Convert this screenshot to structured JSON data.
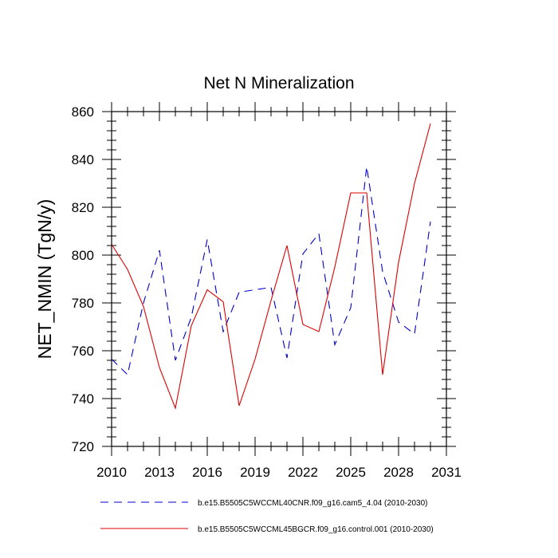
{
  "chart_data": {
    "type": "line",
    "title": "Net N Mineralization",
    "xlabel": "",
    "ylabel": "NET_NMIN  (TgN/y)",
    "xlim": [
      2010,
      2031
    ],
    "ylim": [
      720,
      860
    ],
    "x_ticks": [
      2010,
      2013,
      2016,
      2019,
      2022,
      2025,
      2028,
      2031
    ],
    "y_ticks": [
      720,
      740,
      760,
      780,
      800,
      820,
      840,
      860
    ],
    "x_minor_step": 1,
    "y_minor_step": 4,
    "x": [
      2010,
      2011,
      2012,
      2013,
      2014,
      2015,
      2016,
      2017,
      2018,
      2019,
      2020,
      2021,
      2022,
      2023,
      2024,
      2025,
      2026,
      2027,
      2028,
      2029,
      2030
    ],
    "series": [
      {
        "name": "b.e15.B5505C5WCCML40CNR.f09_g16.cam5_4.04 (2010-2030)",
        "color": "#0000cc",
        "dash": "dashed",
        "values": [
          756.5,
          750,
          780,
          802,
          756,
          774,
          806.5,
          768,
          784.5,
          785.5,
          786.5,
          757,
          800.5,
          809,
          762.5,
          778,
          837,
          793,
          772,
          767,
          814
        ]
      },
      {
        "name": "b.e15.B5505C5WCCML45BGCR.f09_g16.control.001 (2010-2030)",
        "color": "#dd0000",
        "dash": "solid",
        "values": [
          804.5,
          794,
          778.5,
          753,
          736,
          770.5,
          785.5,
          780.5,
          737,
          756.5,
          781,
          804,
          771,
          768,
          795,
          826,
          826,
          750,
          797,
          830,
          855
        ]
      }
    ],
    "legend_position": "bottom"
  }
}
